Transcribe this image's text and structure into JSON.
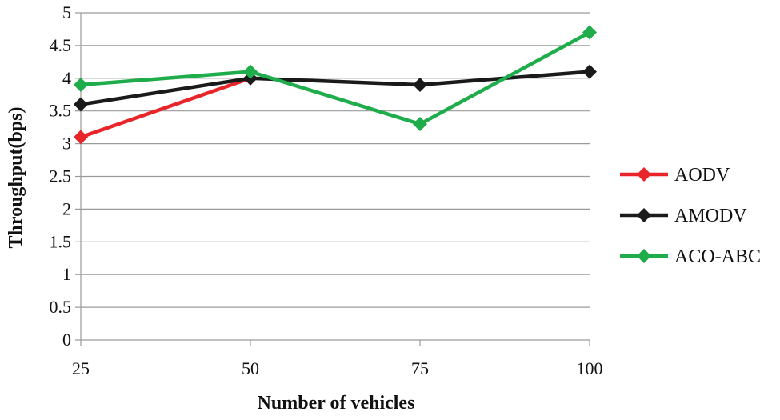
{
  "chart_data": {
    "type": "line",
    "title": "",
    "xlabel": "Number of vehicles",
    "ylabel": "Throughput(bps)",
    "categories": [
      "25",
      "50",
      "75",
      "100"
    ],
    "y_ticks": [
      "0",
      "0.5",
      "1",
      "1.5",
      "2",
      "2.5",
      "3",
      "3.5",
      "4",
      "4.5",
      "5"
    ],
    "ylim": [
      0,
      5
    ],
    "grid": true,
    "legend_position": "right",
    "series": [
      {
        "name": "AODV",
        "color": "#e8262a",
        "marker": "diamond",
        "values": [
          3.1,
          4.0,
          null,
          null
        ]
      },
      {
        "name": "AMODV",
        "color": "#1a1a1a",
        "marker": "diamond",
        "values": [
          3.6,
          4.0,
          3.9,
          4.1
        ]
      },
      {
        "name": "ACO-ABC",
        "color": "#1fac4b",
        "marker": "diamond",
        "values": [
          3.9,
          4.1,
          3.3,
          4.7
        ]
      }
    ]
  }
}
